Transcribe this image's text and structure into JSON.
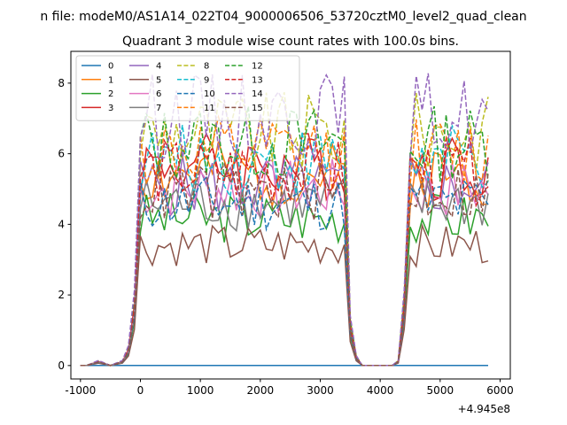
{
  "chart_data": {
    "type": "line",
    "suptitle": "n file: modeM0/AS1A14_022T04_9000006506_53720cztM0_level2_quad_clean",
    "title": "Quadrant 3 module wise count rates with 100.0s bins.",
    "xlabel": "",
    "ylabel": "",
    "offset_label": "+4.945e8",
    "xlim": [
      -1160,
      6170
    ],
    "ylim": [
      -0.38,
      8.9
    ],
    "xticks": [
      -1000,
      0,
      1000,
      2000,
      3000,
      4000,
      5000,
      6000
    ],
    "yticks": [
      0,
      2,
      4,
      6,
      8
    ],
    "legend_position": "upper-left",
    "legend_columns": 4,
    "x": [
      -1000,
      -900,
      -800,
      -700,
      -600,
      -500,
      -400,
      -300,
      -200,
      -100,
      0,
      100,
      200,
      300,
      400,
      500,
      600,
      700,
      800,
      900,
      1000,
      1100,
      1200,
      1300,
      1400,
      1500,
      1600,
      1700,
      1800,
      1900,
      2000,
      2100,
      2200,
      2300,
      2400,
      2500,
      2600,
      2700,
      2800,
      2900,
      3000,
      3100,
      3200,
      3300,
      3400,
      3500,
      3600,
      3700,
      3800,
      3900,
      4000,
      4100,
      4200,
      4300,
      4400,
      4500,
      4600,
      4700,
      4800,
      4900,
      5000,
      5100,
      5200,
      5300,
      5400,
      5500,
      5600,
      5700,
      5800
    ],
    "base_profile": [
      0,
      0,
      0.01,
      0.02,
      0.01,
      0,
      0.01,
      0.02,
      0.08,
      0.3,
      1,
      1,
      1,
      1,
      1,
      1,
      1,
      1,
      1,
      1,
      1,
      1,
      1,
      1,
      1,
      1,
      1,
      1,
      1,
      1,
      1,
      1,
      1,
      1,
      1,
      1,
      1,
      1,
      1,
      1,
      1,
      1,
      1,
      1,
      1,
      0.2,
      0.04,
      0,
      0,
      0,
      0,
      0,
      0,
      0.02,
      0.3,
      1,
      1,
      1,
      1,
      1,
      1,
      1,
      1,
      1,
      1,
      1,
      1,
      1,
      1
    ],
    "series": [
      {
        "name": "0",
        "color": "#1f77b4",
        "dash": "solid",
        "level": 0,
        "seed": 1
      },
      {
        "name": "1",
        "color": "#ff7f0e",
        "dash": "solid",
        "level": 5.4,
        "seed": 2
      },
      {
        "name": "2",
        "color": "#2ca02c",
        "dash": "solid",
        "level": 4.2,
        "seed": 3
      },
      {
        "name": "3",
        "color": "#d62728",
        "dash": "solid",
        "level": 5.7,
        "seed": 4
      },
      {
        "name": "4",
        "color": "#9467bd",
        "dash": "solid",
        "level": 5.1,
        "seed": 5
      },
      {
        "name": "5",
        "color": "#8c564b",
        "dash": "solid",
        "level": 3.4,
        "seed": 6
      },
      {
        "name": "6",
        "color": "#e377c2",
        "dash": "solid",
        "level": 5.0,
        "seed": 7
      },
      {
        "name": "7",
        "color": "#7f7f7f",
        "dash": "solid",
        "level": 4.6,
        "seed": 8
      },
      {
        "name": "8",
        "color": "#bcbd22",
        "dash": "dashed",
        "level": 6.6,
        "seed": 9
      },
      {
        "name": "9",
        "color": "#17becf",
        "dash": "dashed",
        "level": 5.8,
        "seed": 10
      },
      {
        "name": "10",
        "color": "#1f77b4",
        "dash": "dashed",
        "level": 4.6,
        "seed": 11
      },
      {
        "name": "11",
        "color": "#ff7f0e",
        "dash": "dashed",
        "level": 6.0,
        "seed": 12
      },
      {
        "name": "12",
        "color": "#2ca02c",
        "dash": "dashed",
        "level": 6.3,
        "seed": 13
      },
      {
        "name": "13",
        "color": "#d62728",
        "dash": "dashed",
        "level": 5.5,
        "seed": 14
      },
      {
        "name": "14",
        "color": "#9467bd",
        "dash": "dashed",
        "level": 7.1,
        "seed": 15
      },
      {
        "name": "15",
        "color": "#8c564b",
        "dash": "dashed",
        "level": 4.9,
        "seed": 16
      }
    ]
  }
}
